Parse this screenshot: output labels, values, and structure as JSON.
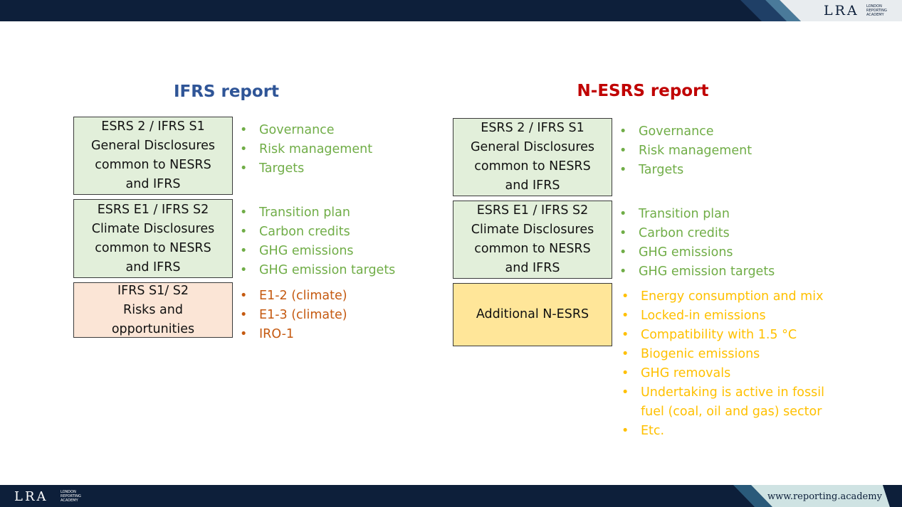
{
  "header": {
    "logo": "LRA",
    "logo_sub": [
      "LONDON",
      "REPORTING",
      "ACADEMY"
    ]
  },
  "columns": [
    {
      "title": "IFRS report",
      "title_color": "#2f5597",
      "sections": [
        {
          "box": [
            "ESRS 2 / IFRS S1",
            "General Disclosures",
            "common to NESRS",
            "and IFRS"
          ],
          "fill": "#e2efda",
          "text_color": "#70ad47",
          "bullets": [
            "Governance",
            "Risk management",
            "Targets"
          ]
        },
        {
          "box": [
            "ESRS E1 / IFRS S2",
            "Climate Disclosures",
            "common to NESRS",
            "and IFRS"
          ],
          "fill": "#e2efda",
          "text_color": "#70ad47",
          "bullets": [
            "Transition plan",
            "Carbon credits",
            "GHG emissions",
            "GHG emission targets"
          ]
        },
        {
          "box": [
            "IFRS S1/ S2",
            "Risks and",
            "opportunities"
          ],
          "fill": "#fbe5d6",
          "text_color": "#c55a11",
          "bullets": [
            "E1-2 (climate)",
            "E1-3 (climate)",
            "IRO-1"
          ]
        }
      ]
    },
    {
      "title": "N-ESRS report",
      "title_color": "#c00000",
      "sections": [
        {
          "box": [
            "ESRS 2 / IFRS S1",
            "General Disclosures",
            "common to NESRS",
            "and IFRS"
          ],
          "fill": "#e2efda",
          "text_color": "#70ad47",
          "bullets": [
            "Governance",
            "Risk management",
            "Targets"
          ]
        },
        {
          "box": [
            "ESRS E1 / IFRS S2",
            "Climate Disclosures",
            "common to NESRS",
            "and IFRS"
          ],
          "fill": "#e2efda",
          "text_color": "#70ad47",
          "bullets": [
            "Transition plan",
            "Carbon credits",
            "GHG emissions",
            "GHG emission targets"
          ]
        },
        {
          "box": [
            "Additional N-ESRS"
          ],
          "fill": "#ffe699",
          "text_color": "#ffc000",
          "bullets": [
            "Energy consumption and mix",
            "Locked-in emissions",
            "Compatibility with 1.5 °C",
            "Biogenic emissions",
            "GHG removals",
            "Undertaking is active in fossil fuel (coal, oil and gas) sector",
            "Etc."
          ]
        }
      ]
    }
  ],
  "footer": {
    "logo": "LRA",
    "logo_sub": [
      "LONDON",
      "REPORTING",
      "ACADEMY"
    ],
    "url": "www.reporting.academy"
  }
}
